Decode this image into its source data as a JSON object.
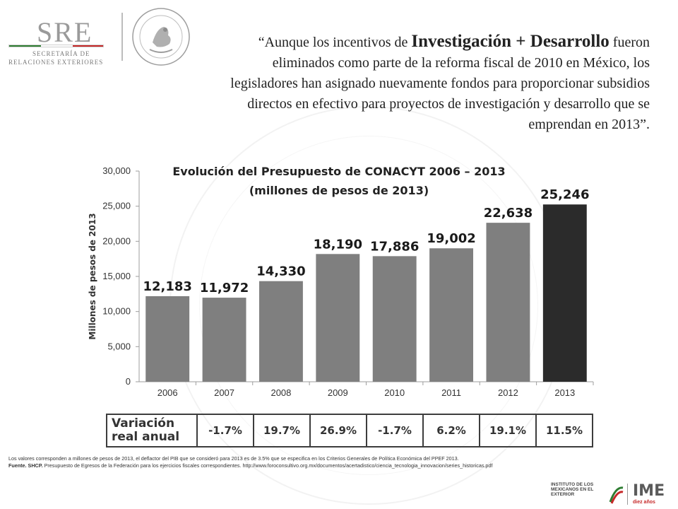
{
  "header": {
    "logo_word": "SRE",
    "logo_sub1": "SECRETARÍA DE",
    "logo_sub2": "RELACIONES EXTERIORES",
    "seal_icon": "mexican-coat-of-arms-seal"
  },
  "quote": {
    "part1": "“Aunque los incentivos de ",
    "emphasis": "Investigación + Desarrollo",
    "part2": " fueron eliminados como parte de la reforma fiscal de 2010 en México, los legisladores han asignado nuevamente fondos para proporcionar subsidios directos en efectivo para proyectos de investigación y desarrollo que se emprendan en 2013”."
  },
  "chart_data": {
    "type": "bar",
    "title": "Evolución del Presupuesto de CONACYT 2006 – 2013",
    "subtitle": "(millones de pesos de 2013)",
    "ylabel": "Millones de pesos de 2013",
    "xlabel": "",
    "categories": [
      "2006",
      "2007",
      "2008",
      "2009",
      "2010",
      "2011",
      "2012",
      "2013"
    ],
    "values": [
      12183,
      11972,
      14330,
      18190,
      17886,
      19002,
      22638,
      25246
    ],
    "value_labels": [
      "12,183",
      "11,972",
      "14,330",
      "18,190",
      "17,886",
      "19,002",
      "22,638",
      "25,246"
    ],
    "ylim": [
      0,
      30000
    ],
    "yticks": [
      0,
      5000,
      10000,
      15000,
      20000,
      25000,
      30000
    ],
    "ytick_labels": [
      "0",
      "5,000",
      "10,000",
      "15,000",
      "20,000",
      "25,000",
      "30,000"
    ],
    "grid": false,
    "colors": {
      "bar": "#7f7f7f",
      "highlight": "#2b2b2b",
      "highlight_index": 7
    }
  },
  "variation_table": {
    "header": "Variación real anual",
    "header_line1": "Variación",
    "header_line2": "real anual",
    "values": [
      "-1.7%",
      "19.7%",
      "26.9%",
      "-1.7%",
      "6.2%",
      "19.1%",
      "11.5%"
    ]
  },
  "footnotes": {
    "note": "Los valores corresponden a millones de pesos de 2013, el deflactor del PIB que se consideró para 2013 es de 3.5% que se especifica en los Criterios Generales de Política Económica del PPEF 2013.",
    "source_label": "Fuente. SHCP.",
    "source_text": " Presupuesto de Egresos de la Federación para los ejercicios fiscales correspondientes. http://www.foroconsultivo.org.mx/documentos/acertadistico/ciencia_tecnologia_innovacion/series_historicas.pdf"
  },
  "footer_logo": {
    "institute": "INSTITUTO DE LOS MEXICANOS EN EL EXTERIOR",
    "word": "IME",
    "tagline": "diez años"
  }
}
